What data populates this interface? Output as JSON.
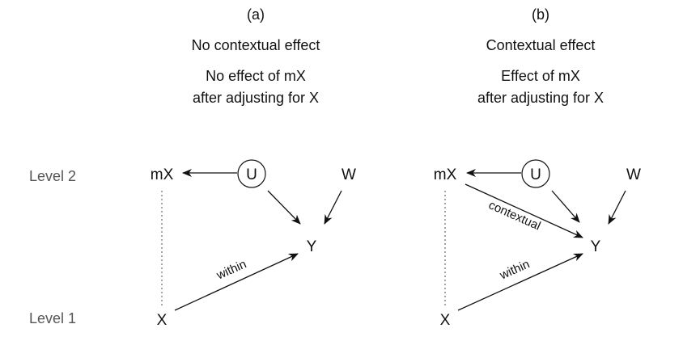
{
  "levels": {
    "level2": "Level 2",
    "level1": "Level 1"
  },
  "panel_a": {
    "tag": "(a)",
    "title": "No contextual effect",
    "caption_line1": "No effect of mX",
    "caption_line2": "after adjusting for X",
    "nodes": {
      "mX": "mX",
      "U": "U",
      "W": "W",
      "Y": "Y",
      "X": "X"
    },
    "edge_labels": {
      "within": "within"
    }
  },
  "panel_b": {
    "tag": "(b)",
    "title": "Contextual effect",
    "caption_line1": "Effect of mX",
    "caption_line2": "after adjusting for X",
    "nodes": {
      "mX": "mX",
      "U": "U",
      "W": "W",
      "Y": "Y",
      "X": "X"
    },
    "edge_labels": {
      "contextual": "contextual",
      "within": "within"
    }
  },
  "colors": {
    "ink": "#111111",
    "level_text": "#555555",
    "dotted_line": "#777777",
    "background": "#ffffff"
  }
}
